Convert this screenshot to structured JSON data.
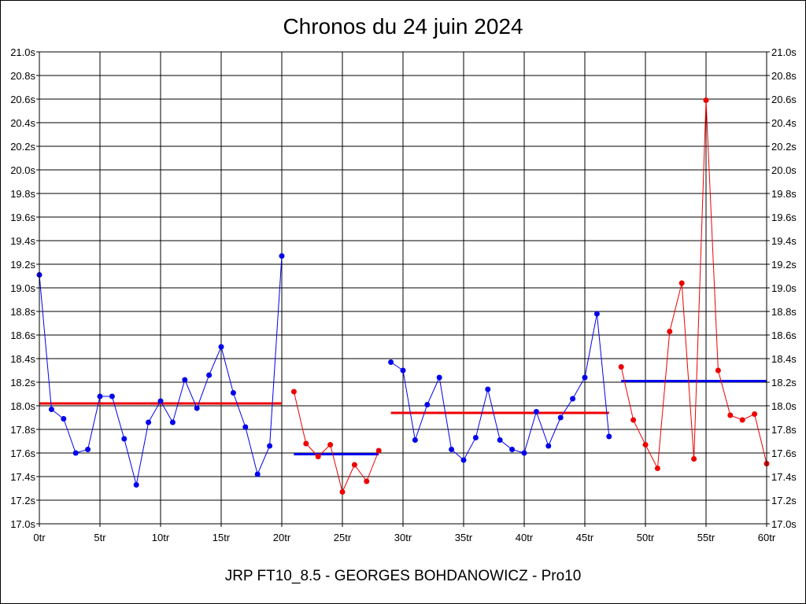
{
  "footer": "JRP FT10_8.5 - GEORGES BOHDANOWICZ - Pro10",
  "chart_data": {
    "type": "line",
    "title": "Chronos du 24 juin 2024",
    "xlabel": "",
    "ylabel": "",
    "xlim": [
      0,
      60
    ],
    "ylim": [
      17.0,
      21.0
    ],
    "grid": true,
    "y_ticks": [
      "17.0s",
      "17.2s",
      "17.4s",
      "17.6s",
      "17.8s",
      "18.0s",
      "18.2s",
      "18.4s",
      "18.6s",
      "18.8s",
      "19.0s",
      "19.2s",
      "19.4s",
      "19.6s",
      "19.8s",
      "20.0s",
      "20.2s",
      "20.4s",
      "20.6s",
      "20.8s",
      "21.0s"
    ],
    "x_ticks": [
      "0tr",
      "5tr",
      "10tr",
      "15tr",
      "20tr",
      "25tr",
      "30tr",
      "35tr",
      "40tr",
      "45tr",
      "50tr",
      "55tr",
      "60tr"
    ],
    "colors": {
      "blue": "#0000ee",
      "red": "#ee0000"
    },
    "series": [
      {
        "color": "#0000ee",
        "x": [
          0,
          1,
          2,
          3,
          4,
          5,
          6,
          7,
          8,
          9,
          10,
          11,
          12,
          13,
          14,
          15,
          16,
          17,
          18,
          19,
          20
        ],
        "y": [
          19.11,
          17.97,
          17.89,
          17.6,
          17.63,
          18.08,
          18.08,
          17.72,
          17.33,
          17.86,
          18.04,
          17.86,
          18.22,
          17.98,
          18.26,
          18.5,
          18.11,
          17.82,
          17.42,
          17.66,
          19.27
        ]
      },
      {
        "color": "#ee0000",
        "x": [
          21,
          22,
          23,
          24,
          25,
          26,
          27,
          28
        ],
        "y": [
          18.12,
          17.68,
          17.57,
          17.67,
          17.27,
          17.5,
          17.36,
          17.62
        ]
      },
      {
        "color": "#0000ee",
        "x": [
          29,
          30,
          31,
          32,
          33,
          34,
          35,
          36,
          37,
          38,
          39,
          40,
          41,
          42,
          43,
          44,
          45,
          46,
          47
        ],
        "y": [
          18.37,
          18.3,
          17.71,
          18.01,
          18.24,
          17.63,
          17.54,
          17.73,
          18.14,
          17.71,
          17.63,
          17.6,
          17.95,
          17.66,
          17.9,
          18.06,
          18.24,
          18.78,
          17.74
        ]
      },
      {
        "color": "#ee0000",
        "x": [
          48,
          49,
          50,
          51,
          52,
          53,
          54,
          55,
          56,
          57,
          58,
          59,
          60
        ],
        "y": [
          18.33,
          17.88,
          17.67,
          17.47,
          18.63,
          19.04,
          17.55,
          20.59,
          18.3,
          17.92,
          17.88,
          17.93,
          17.51
        ]
      }
    ],
    "averages": [
      {
        "color": "#ee0000",
        "x_start": 0,
        "x_end": 20,
        "y": 18.02
      },
      {
        "color": "#0000ee",
        "x_start": 21,
        "x_end": 28,
        "y": 17.59
      },
      {
        "color": "#ee0000",
        "x_start": 29,
        "x_end": 47,
        "y": 17.94
      },
      {
        "color": "#0000ee",
        "x_start": 48,
        "x_end": 60,
        "y": 18.21
      }
    ]
  }
}
